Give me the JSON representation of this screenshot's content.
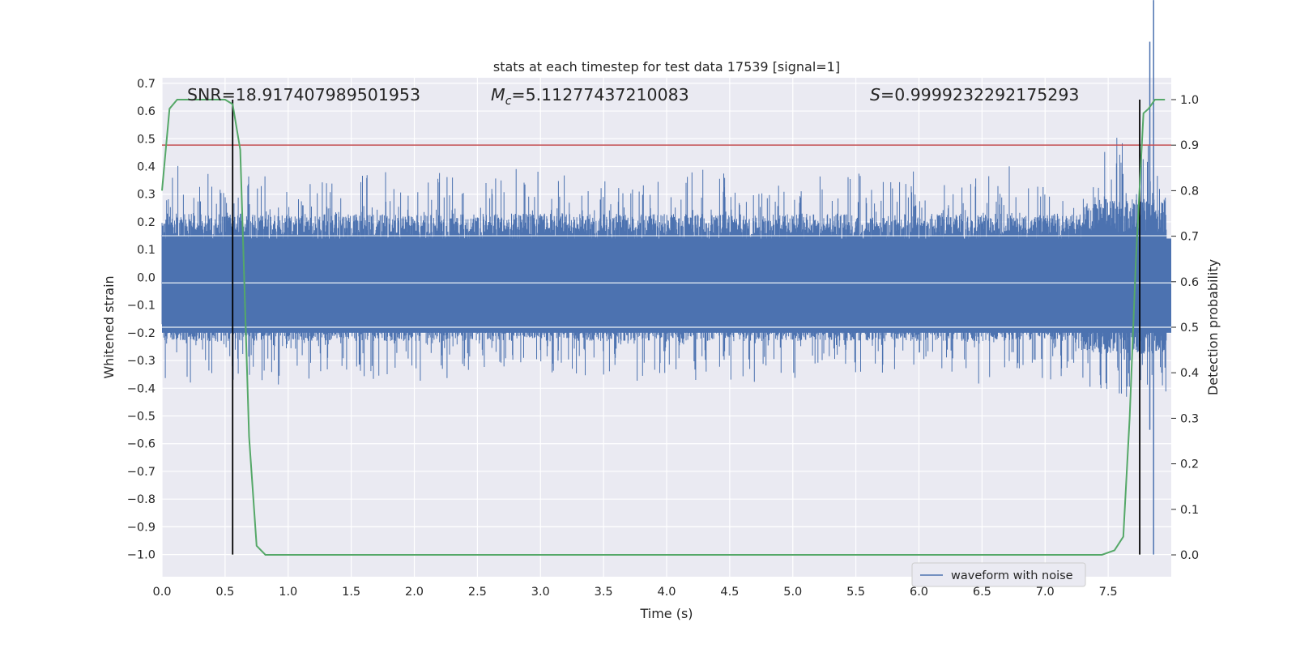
{
  "chart_data": {
    "type": "line",
    "title": "stats at each timestep for test data 17539 [signal=1]",
    "xlabel": "Time (s)",
    "ylabel": "Whitened strain",
    "y2label": "Detection probability",
    "xlim": [
      0.0,
      8.0
    ],
    "ylim": [
      -1.08,
      0.72
    ],
    "y2lim": [
      -0.048,
      1.048
    ],
    "x_ticks": [
      "0.0",
      "0.5",
      "1.0",
      "1.5",
      "2.0",
      "2.5",
      "3.0",
      "3.5",
      "4.0",
      "4.5",
      "5.0",
      "5.5",
      "6.0",
      "6.5",
      "7.0",
      "7.5"
    ],
    "y_ticks": [
      "0.7",
      "0.6",
      "0.5",
      "0.4",
      "0.3",
      "0.2",
      "0.1",
      "0.0",
      "−0.1",
      "−0.2",
      "−0.3",
      "−0.4",
      "−0.5",
      "−0.6",
      "−0.7",
      "−0.8",
      "−0.9",
      "−1.0"
    ],
    "y2_ticks": [
      "1.0",
      "0.9",
      "0.8",
      "0.7",
      "0.6",
      "0.5",
      "0.4",
      "0.3",
      "0.2",
      "0.1",
      "0.0"
    ],
    "grid": true,
    "legend": {
      "placement": "lower-right",
      "entries": [
        "waveform with noise"
      ]
    },
    "annotations": {
      "snr": "SNR=18.917407989501953",
      "mc_symbol": "M",
      "mc_subscript": "c",
      "mc_value": "=5.11277437210083",
      "s_symbol": "S",
      "s_value": "=0.9999232292175293"
    },
    "threshold_line": {
      "y2": 0.9,
      "color": "#c44e52"
    },
    "vertical_lines": {
      "x": [
        0.56,
        7.75
      ],
      "y_from": -1.0,
      "y_to": 1.0,
      "color": "#000000"
    },
    "series": [
      {
        "name": "waveform with noise",
        "color": "#4c72b0",
        "description_of_values": "whitened strain noise, roughly symmetric about 0 with typical amplitude ±0.2 and peaks near ±0.45; a chirp near t=7.75–7.9 s reaching about 1.0 and −1.0",
        "x_range": [
          0.0,
          8.0
        ],
        "peak_values": {
          "max": 1.0,
          "min": -1.0
        }
      },
      {
        "name": "",
        "color": "#55a868",
        "axis": "y2",
        "x": [
          0.0,
          0.06,
          0.12,
          0.5,
          0.56,
          0.62,
          0.69,
          0.75,
          0.82,
          1.0,
          2.0,
          3.0,
          4.0,
          5.0,
          6.0,
          7.0,
          7.45,
          7.55,
          7.62,
          7.67,
          7.72,
          7.78,
          7.82,
          7.87,
          7.9,
          7.95
        ],
        "values": [
          0.8,
          0.98,
          1.0,
          1.0,
          0.99,
          0.89,
          0.26,
          0.02,
          0.0,
          0.0,
          0.0,
          0.0,
          0.0,
          0.0,
          0.0,
          0.0,
          0.0,
          0.01,
          0.04,
          0.3,
          0.65,
          0.97,
          0.98,
          1.0,
          1.0,
          1.0
        ]
      }
    ]
  }
}
